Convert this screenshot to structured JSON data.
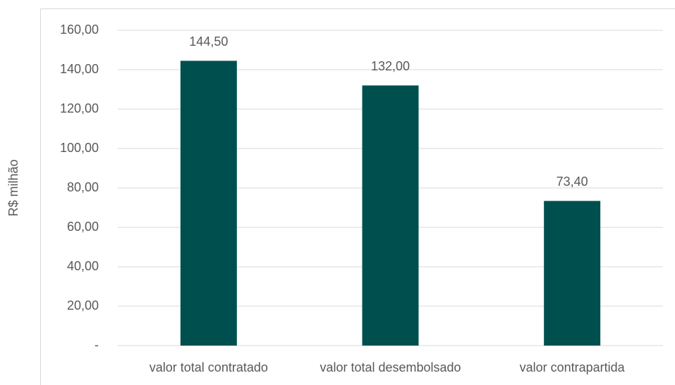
{
  "chart_data": {
    "type": "bar",
    "ylabel": "R$ milhão",
    "categories": [
      "valor total contratado",
      "valor total desembolsado",
      "valor contrapartida"
    ],
    "values": [
      144.5,
      132,
      73.4
    ],
    "value_labels": [
      "144,50",
      "132,00",
      "73,40"
    ],
    "color": "#004f4f",
    "ylim": [
      0,
      160
    ],
    "yticks": [
      {
        "value": 0,
        "label": "-"
      },
      {
        "value": 20,
        "label": "20,00"
      },
      {
        "value": 40,
        "label": "40,00"
      },
      {
        "value": 60,
        "label": "60,00"
      },
      {
        "value": 80,
        "label": "80,00"
      },
      {
        "value": 100,
        "label": "100,00"
      },
      {
        "value": 120,
        "label": "120,00"
      },
      {
        "value": 140,
        "label": "140,00"
      },
      {
        "value": 160,
        "label": "160,00"
      }
    ],
    "grid": true
  }
}
